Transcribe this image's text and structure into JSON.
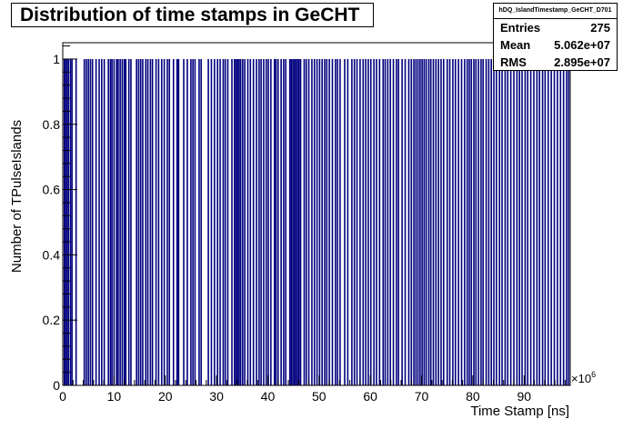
{
  "title": "Distribution of time stamps in GeCHT",
  "stats": {
    "name": "hDQ_IslandTimestamp_GeCHT_D701",
    "rows": [
      {
        "label": "Entries",
        "value": "275"
      },
      {
        "label": "Mean",
        "value": "5.062e+07"
      },
      {
        "label": "RMS",
        "value": "2.895e+07"
      }
    ]
  },
  "chart_data": {
    "type": "bar",
    "xlabel": "Time Stamp [ns]",
    "ylabel": "Number of TPulseIslands",
    "x_exponent": "×10",
    "x_exponent_power": "6",
    "xlim": [
      0,
      99
    ],
    "ylim": [
      0,
      1.05
    ],
    "x_unit_scale": 1000000,
    "x_ticks": [
      0,
      10,
      20,
      30,
      40,
      50,
      60,
      70,
      80,
      90
    ],
    "x_tick_labels": [
      "0",
      "10",
      "20",
      "30",
      "40",
      "50",
      "60",
      "70",
      "80",
      "90"
    ],
    "y_ticks": [
      0,
      0.2,
      0.4,
      0.6,
      0.8,
      1
    ],
    "y_tick_labels": [
      "0",
      "0.2",
      "0.4",
      "0.6",
      "0.8",
      "1"
    ],
    "bar_color": "#00007f",
    "series": [
      {
        "values": [
          0.3,
          0.5,
          0.8,
          1.1,
          1.5,
          1.8,
          2.6,
          4.2,
          4.6,
          5.0,
          5.4,
          5.8,
          6.5,
          7.1,
          7.6,
          8.1,
          8.9,
          9.3,
          9.6,
          10.0,
          10.5,
          10.8,
          11.2,
          11.6,
          12.0,
          12.3,
          12.9,
          13.3,
          14.4,
          14.8,
          15.2,
          15.6,
          16.2,
          16.6,
          17.1,
          17.5,
          18.2,
          18.7,
          19.3,
          19.8,
          20.4,
          20.8,
          21.6,
          22.3,
          22.6,
          23.6,
          24.3,
          25.0,
          25.4,
          25.8,
          26.6,
          27.0,
          28.4,
          29.0,
          29.6,
          30.2,
          30.7,
          31.3,
          31.7,
          32.2,
          33.0,
          33.5,
          33.8,
          34.1,
          34.4,
          34.7,
          35.1,
          35.5,
          36.1,
          36.6,
          37.2,
          37.8,
          38.3,
          38.7,
          39.2,
          39.7,
          40.1,
          40.6,
          41.3,
          41.6,
          42.0,
          42.6,
          43.1,
          43.5,
          44.3,
          44.6,
          44.9,
          45.2,
          45.5,
          45.8,
          46.1,
          46.4,
          47.1,
          47.5,
          48.0,
          48.6,
          49.1,
          49.6,
          50.1,
          50.6,
          51.1,
          51.5,
          52.0,
          52.6,
          53.2,
          53.6,
          54.1,
          55.0,
          55.6,
          56.4,
          56.9,
          57.4,
          58.0,
          58.6,
          59.1,
          59.6,
          60.1,
          60.7,
          61.2,
          61.8,
          62.5,
          62.9,
          63.4,
          63.9,
          64.5,
          65.1,
          65.5,
          66.2,
          66.8,
          67.5,
          68.0,
          68.5,
          68.9,
          69.3,
          69.7,
          70.1,
          70.5,
          70.9,
          71.4,
          71.8,
          72.3,
          72.8,
          73.3,
          73.8,
          74.3,
          75.0,
          75.5,
          76.1,
          76.6,
          77.2,
          77.8,
          78.4,
          78.9,
          79.3,
          79.7,
          80.2,
          80.6,
          81.1,
          81.6,
          82.0,
          82.6,
          83.1,
          83.6,
          84.1,
          84.6,
          85.2,
          85.7,
          86.3,
          86.8,
          87.4,
          88.0,
          88.6,
          89.1,
          89.6,
          90.2,
          90.7,
          91.3,
          91.9,
          92.5,
          93.0,
          93.6,
          94.1,
          94.7,
          95.3,
          95.9,
          96.5,
          97.1,
          97.7,
          98.3,
          98.7
        ]
      }
    ]
  }
}
